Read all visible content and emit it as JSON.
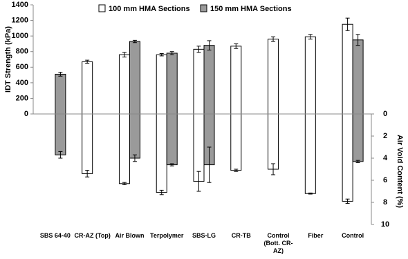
{
  "chart_data": {
    "type": "bar",
    "y_label": "IDT Strength (kPa)",
    "y2_label": "Air Void Content (%)",
    "categories": [
      "SBS 64-40",
      "CR-AZ (Top)",
      "Air Blown",
      "Terpolymer",
      "SBS-LG",
      "CR-TB",
      "Control (Bott. CR-AZ)",
      "Fiber",
      "Control"
    ],
    "series": [
      {
        "name": "100 mm HMA Sections",
        "color": "#ffffff",
        "values": [
          null,
          670,
          760,
          760,
          830,
          870,
          960,
          990,
          1150
        ],
        "errors": [
          null,
          20,
          30,
          15,
          40,
          30,
          30,
          30,
          80
        ],
        "air_void": [
          null,
          5.4,
          6.3,
          7.1,
          6.1,
          5.1,
          5.0,
          7.2,
          7.9
        ],
        "air_void_errors": [
          null,
          0.3,
          0.1,
          0.2,
          0.9,
          0.1,
          0.5,
          0.05,
          0.2
        ]
      },
      {
        "name": "150 mm HMA Sections",
        "color": "#9a9a9a",
        "values": [
          510,
          null,
          930,
          780,
          880,
          null,
          null,
          null,
          950
        ],
        "errors": [
          25,
          null,
          15,
          20,
          60,
          null,
          null,
          null,
          70
        ],
        "air_void": [
          3.7,
          null,
          4.0,
          4.6,
          4.6,
          null,
          null,
          null,
          4.3
        ],
        "air_void_errors": [
          0.3,
          null,
          0.3,
          0.1,
          1.6,
          null,
          null,
          null,
          0.1
        ]
      }
    ],
    "ylim": [
      0,
      1400
    ],
    "yticks": [
      0,
      200,
      400,
      600,
      800,
      1000,
      1200,
      1400
    ],
    "y2lim": [
      0,
      10
    ],
    "y2ticks": [
      0,
      2,
      4,
      6,
      8,
      10
    ],
    "y2_inverted": true,
    "legend": "top"
  }
}
